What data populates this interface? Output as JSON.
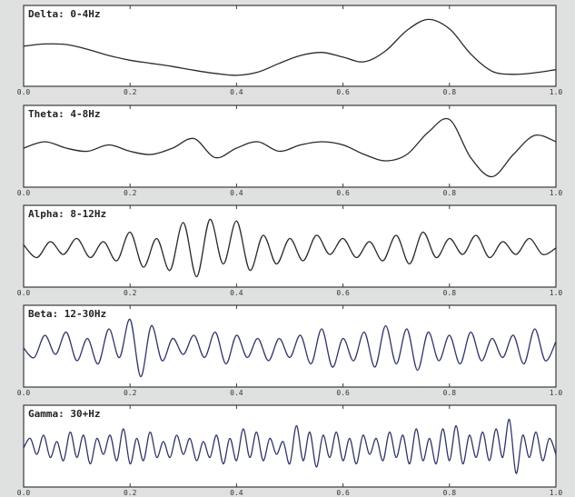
{
  "chart_data": [
    {
      "type": "line",
      "title": "Delta: 0-4Hz",
      "xlim": [
        0.0,
        1.0
      ],
      "xticks": [
        "0.0",
        "0.2",
        "0.4",
        "0.6",
        "0.8",
        "1.0"
      ],
      "grid": false,
      "line_color": "#2a2a2a",
      "x": [
        0,
        0.04,
        0.08,
        0.12,
        0.16,
        0.2,
        0.24,
        0.28,
        0.32,
        0.36,
        0.4,
        0.44,
        0.48,
        0.52,
        0.56,
        0.6,
        0.64,
        0.68,
        0.72,
        0.76,
        0.8,
        0.84,
        0.88,
        0.92,
        0.96,
        1.0
      ],
      "y": [
        0.05,
        0.12,
        0.1,
        -0.05,
        -0.25,
        -0.4,
        -0.5,
        -0.6,
        -0.72,
        -0.82,
        -0.88,
        -0.78,
        -0.5,
        -0.25,
        -0.15,
        -0.3,
        -0.45,
        -0.1,
        0.55,
        0.9,
        0.6,
        -0.2,
        -0.75,
        -0.85,
        -0.8,
        -0.7
      ]
    },
    {
      "type": "line",
      "title": "Theta: 4-8Hz",
      "xlim": [
        0.0,
        1.0
      ],
      "xticks": [
        "0.0",
        "0.2",
        "0.4",
        "0.6",
        "0.8",
        "1.0"
      ],
      "grid": false,
      "line_color": "#2a2a2a",
      "x": [
        0,
        0.04,
        0.08,
        0.12,
        0.16,
        0.2,
        0.24,
        0.28,
        0.32,
        0.36,
        0.4,
        0.44,
        0.48,
        0.52,
        0.56,
        0.6,
        0.64,
        0.68,
        0.72,
        0.76,
        0.8,
        0.84,
        0.88,
        0.92,
        0.96,
        1.0
      ],
      "y": [
        0.0,
        0.2,
        0.0,
        -0.1,
        0.1,
        -0.1,
        -0.2,
        0.0,
        0.3,
        -0.3,
        0.0,
        0.2,
        -0.1,
        0.1,
        0.2,
        0.1,
        -0.2,
        -0.4,
        -0.2,
        0.5,
        0.9,
        -0.3,
        -0.9,
        -0.2,
        0.4,
        0.2
      ]
    },
    {
      "type": "line",
      "title": "Alpha: 8-12Hz",
      "xlim": [
        0.0,
        1.0
      ],
      "xticks": [
        "0.0",
        "0.2",
        "0.4",
        "0.6",
        "0.8",
        "1.0"
      ],
      "grid": false,
      "line_color": "#2a2a2a",
      "x": [
        0,
        0.025,
        0.05,
        0.075,
        0.1,
        0.125,
        0.15,
        0.175,
        0.2,
        0.225,
        0.25,
        0.275,
        0.3,
        0.325,
        0.35,
        0.375,
        0.4,
        0.425,
        0.45,
        0.475,
        0.5,
        0.525,
        0.55,
        0.575,
        0.6,
        0.625,
        0.65,
        0.675,
        0.7,
        0.725,
        0.75,
        0.775,
        0.8,
        0.825,
        0.85,
        0.875,
        0.9,
        0.925,
        0.95,
        0.975,
        1.0
      ],
      "y": [
        0.1,
        -0.3,
        0.2,
        -0.2,
        0.3,
        -0.3,
        0.2,
        -0.4,
        0.5,
        -0.6,
        0.3,
        -0.7,
        0.8,
        -0.9,
        0.9,
        -0.5,
        0.85,
        -0.7,
        0.4,
        -0.5,
        0.3,
        -0.4,
        0.4,
        -0.2,
        0.3,
        -0.3,
        0.2,
        -0.4,
        0.4,
        -0.5,
        0.5,
        -0.3,
        0.3,
        -0.2,
        0.4,
        -0.3,
        0.2,
        -0.2,
        0.3,
        -0.2,
        0.0
      ]
    },
    {
      "type": "line",
      "title": "Beta: 12-30Hz",
      "xlim": [
        0.0,
        1.0
      ],
      "xticks": [
        "0.0",
        "0.2",
        "0.4",
        "0.6",
        "0.8",
        "1.0"
      ],
      "grid": false,
      "line_color": "#2f3566",
      "x": [
        0,
        0.02,
        0.04,
        0.06,
        0.08,
        0.1,
        0.12,
        0.14,
        0.16,
        0.18,
        0.2,
        0.22,
        0.24,
        0.26,
        0.28,
        0.3,
        0.32,
        0.34,
        0.36,
        0.38,
        0.4,
        0.42,
        0.44,
        0.46,
        0.48,
        0.5,
        0.52,
        0.54,
        0.56,
        0.58,
        0.6,
        0.62,
        0.64,
        0.66,
        0.68,
        0.7,
        0.72,
        0.74,
        0.76,
        0.78,
        0.8,
        0.82,
        0.84,
        0.86,
        0.88,
        0.9,
        0.92,
        0.94,
        0.96,
        0.98,
        1.0
      ],
      "y": [
        0.0,
        -0.3,
        0.4,
        -0.2,
        0.5,
        -0.4,
        0.3,
        -0.5,
        0.6,
        -0.3,
        0.9,
        -0.9,
        0.7,
        -0.4,
        0.3,
        -0.2,
        0.4,
        -0.3,
        0.5,
        -0.5,
        0.4,
        -0.3,
        0.3,
        -0.4,
        0.3,
        -0.3,
        0.4,
        -0.5,
        0.6,
        -0.6,
        0.3,
        -0.4,
        0.5,
        -0.6,
        0.7,
        -0.5,
        0.6,
        -0.7,
        0.5,
        -0.4,
        0.4,
        -0.5,
        0.5,
        -0.4,
        0.3,
        -0.3,
        0.4,
        -0.5,
        0.6,
        -0.4,
        0.2
      ]
    },
    {
      "type": "line",
      "title": "Gamma: 30+Hz",
      "xlim": [
        0.0,
        1.0
      ],
      "xticks": [
        "0.0",
        "0.2",
        "0.4",
        "0.6",
        "0.8",
        "1.0"
      ],
      "grid": false,
      "line_color": "#2f3566",
      "x": [
        0,
        0.0125,
        0.025,
        0.0375,
        0.05,
        0.0625,
        0.075,
        0.0875,
        0.1,
        0.1125,
        0.125,
        0.1375,
        0.15,
        0.1625,
        0.175,
        0.1875,
        0.2,
        0.2125,
        0.225,
        0.2375,
        0.25,
        0.2625,
        0.275,
        0.2875,
        0.3,
        0.3125,
        0.325,
        0.3375,
        0.35,
        0.3625,
        0.375,
        0.3875,
        0.4,
        0.4125,
        0.425,
        0.4375,
        0.45,
        0.4625,
        0.475,
        0.4875,
        0.5,
        0.5125,
        0.525,
        0.5375,
        0.55,
        0.5625,
        0.575,
        0.5875,
        0.6,
        0.6125,
        0.625,
        0.6375,
        0.65,
        0.6625,
        0.675,
        0.6875,
        0.7,
        0.7125,
        0.725,
        0.7375,
        0.75,
        0.7625,
        0.775,
        0.7875,
        0.8,
        0.8125,
        0.825,
        0.8375,
        0.85,
        0.8625,
        0.875,
        0.8875,
        0.9,
        0.9125,
        0.925,
        0.9375,
        0.95,
        0.9625,
        0.975,
        0.9875,
        1.0
      ],
      "y": [
        0.0,
        0.3,
        -0.2,
        0.4,
        -0.3,
        0.2,
        -0.4,
        0.5,
        -0.3,
        0.4,
        -0.5,
        0.3,
        -0.2,
        0.4,
        -0.4,
        0.6,
        -0.5,
        0.3,
        -0.4,
        0.5,
        -0.3,
        0.2,
        -0.3,
        0.4,
        -0.2,
        0.3,
        -0.4,
        0.2,
        -0.3,
        0.4,
        -0.5,
        0.3,
        -0.4,
        0.6,
        -0.3,
        0.5,
        -0.4,
        0.3,
        -0.2,
        0.2,
        -0.5,
        0.7,
        -0.4,
        0.5,
        -0.6,
        0.4,
        -0.3,
        0.5,
        -0.4,
        0.3,
        -0.5,
        0.4,
        -0.2,
        0.3,
        -0.4,
        0.5,
        -0.3,
        0.4,
        -0.5,
        0.6,
        -0.4,
        0.3,
        -0.5,
        0.6,
        -0.4,
        0.7,
        -0.5,
        0.4,
        -0.3,
        0.5,
        -0.4,
        0.6,
        -0.3,
        0.9,
        -0.8,
        0.4,
        -0.3,
        0.5,
        -0.4,
        0.3,
        -0.2
      ]
    }
  ]
}
